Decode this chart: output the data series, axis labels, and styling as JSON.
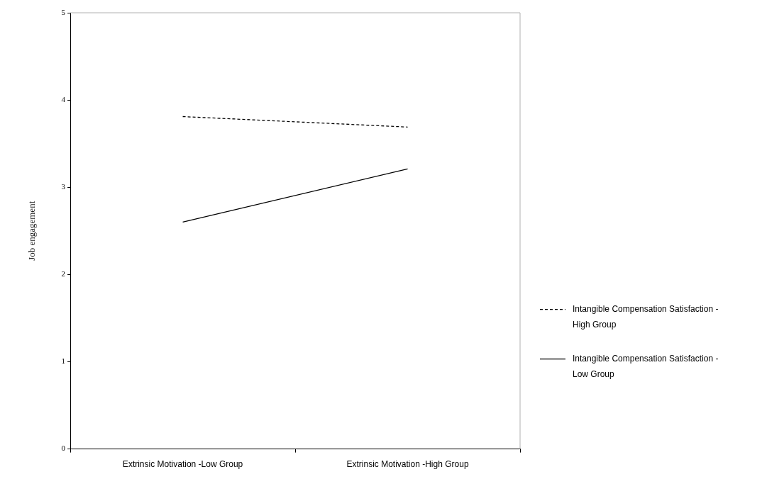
{
  "chart_data": {
    "type": "line",
    "ylabel": "Job engagement",
    "categories": [
      "Extrinsic Motivation -Low Group",
      "Extrinsic Motivation -High Group"
    ],
    "series": [
      {
        "name": "Intangible Compensation Satisfaction - High Group",
        "color": "#000000",
        "values": [
          3.81,
          3.69
        ],
        "line_style": "dashed"
      },
      {
        "name": "Intangible Compensation Satisfaction - Low Group",
        "color": "#000000",
        "values": [
          2.6,
          3.21
        ],
        "line_style": "solid"
      }
    ],
    "ylim": [
      0,
      5
    ],
    "yticks": [
      0,
      1,
      2,
      3,
      4,
      5
    ],
    "grid": false,
    "legend": "right",
    "marker": "none"
  }
}
